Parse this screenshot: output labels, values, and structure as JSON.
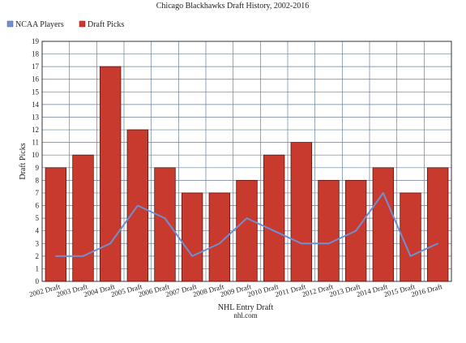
{
  "chart_data": {
    "type": "bar",
    "title": "Chicago Blackhawks Draft History, 2002-2016",
    "xlabel": "NHL Entry Draft",
    "source": "nhl.com",
    "ylabel": "Draft Picks",
    "ylim": [
      0,
      19
    ],
    "ytick_step": 1,
    "grid": true,
    "legend_position": "top-left",
    "categories": [
      "2002 Draft",
      "2003 Draft",
      "2004 Draft",
      "2005 Draft",
      "2006 Draft",
      "2007 Draft",
      "2008 Draft",
      "2009 Draft",
      "2010 Draft",
      "2011 Draft",
      "2012 Draft",
      "2013 Draft",
      "2014 Draft",
      "2015 Draft",
      "2016 Draft"
    ],
    "series": [
      {
        "name": "NCAA Players",
        "type": "line",
        "color": "#6f8fd0",
        "values": [
          2,
          2,
          3,
          6,
          5,
          2,
          3,
          5,
          4,
          3,
          3,
          4,
          7,
          2,
          3
        ]
      },
      {
        "name": "Draft Picks",
        "type": "bar",
        "color": "#c93a2e",
        "values": [
          9,
          10,
          17,
          12,
          9,
          7,
          7,
          8,
          10,
          11,
          8,
          8,
          9,
          7,
          9
        ]
      }
    ]
  }
}
